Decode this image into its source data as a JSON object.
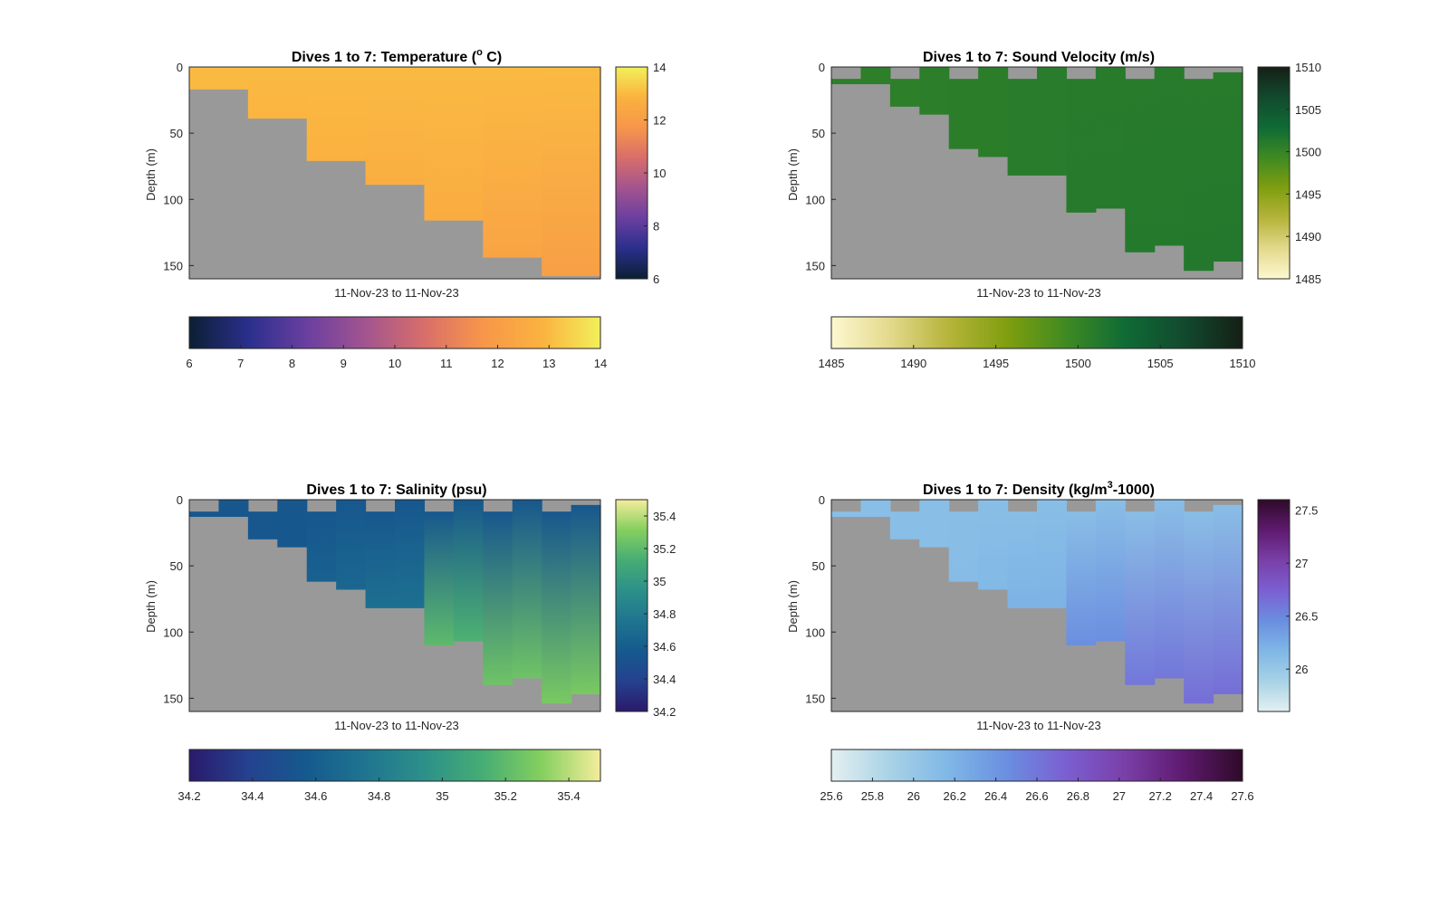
{
  "figure": {
    "background": "#ffffff",
    "land_color": "#999999"
  },
  "chart_data": [
    {
      "type": "heatmap",
      "variable": "temperature",
      "title": "Dives 1 to 7: Temperature (",
      "title_sup": "o",
      "title_end": " C)",
      "xlabel": "11-Nov-23 to 11-Nov-23",
      "ylabel": "Depth (m)",
      "ylim": [
        0,
        160
      ],
      "y_reversed": true,
      "yticks": [
        "0",
        "50",
        "100",
        "150"
      ],
      "yticks_values": [
        0,
        50,
        100,
        150
      ],
      "clim": [
        6,
        14
      ],
      "colormap": [
        "#0b1f33",
        "#2a2f8c",
        "#6a3fa0",
        "#a3548f",
        "#d86e6a",
        "#f7964a",
        "#fbb23f",
        "#f2f05a"
      ],
      "cb_right_ticks": [
        "6",
        "8",
        "10",
        "12",
        "14"
      ],
      "cb_right_values": [
        6,
        8,
        10,
        12,
        14
      ],
      "cb_bottom_ticks": [
        "6",
        "7",
        "8",
        "9",
        "10",
        "11",
        "12",
        "13",
        "14"
      ],
      "cb_bottom_values": [
        6,
        7,
        8,
        9,
        10,
        11,
        12,
        13,
        14
      ],
      "columns": [
        {
          "top": 0,
          "bottom": 17,
          "surface": 13.0,
          "bottom_value": 13.0
        },
        {
          "top": 0,
          "bottom": 39,
          "surface": 13.0,
          "bottom_value": 12.9
        },
        {
          "top": 0,
          "bottom": 71,
          "surface": 13.0,
          "bottom_value": 12.8
        },
        {
          "top": 0,
          "bottom": 89,
          "surface": 13.0,
          "bottom_value": 12.7
        },
        {
          "top": 0,
          "bottom": 116,
          "surface": 13.0,
          "bottom_value": 12.6
        },
        {
          "top": 0,
          "bottom": 144,
          "surface": 13.0,
          "bottom_value": 12.3
        },
        {
          "top": 0,
          "bottom": 158,
          "surface": 13.0,
          "bottom_value": 12.1
        }
      ]
    },
    {
      "type": "heatmap",
      "variable": "sound_velocity",
      "title": "Dives 1 to 7: Sound Velocity (m/s)",
      "xlabel": "11-Nov-23 to 11-Nov-23",
      "ylabel": "Depth (m)",
      "ylim": [
        0,
        160
      ],
      "y_reversed": true,
      "yticks": [
        "0",
        "50",
        "100",
        "150"
      ],
      "yticks_values": [
        0,
        50,
        100,
        150
      ],
      "clim": [
        1485,
        1510
      ],
      "colormap": [
        "#fdf8d0",
        "#e3d98c",
        "#b5b43a",
        "#7f9e0f",
        "#3f8a22",
        "#0f6b35",
        "#124a2e",
        "#151f15"
      ],
      "cb_right_ticks": [
        "1485",
        "1490",
        "1495",
        "1500",
        "1505",
        "1510"
      ],
      "cb_right_values": [
        1485,
        1490,
        1495,
        1500,
        1505,
        1510
      ],
      "cb_bottom_ticks": [
        "1485",
        "1490",
        "1495",
        "1500",
        "1505",
        "1510"
      ],
      "cb_bottom_values": [
        1485,
        1490,
        1495,
        1500,
        1505,
        1510
      ],
      "columns": [
        {
          "top": 0,
          "bottom": 13,
          "surface": 1500.6,
          "bottom_value": 1500.6
        },
        {
          "top": 0,
          "bottom": 13,
          "surface": 1500.6,
          "bottom_value": 1500.6
        },
        {
          "top": 0,
          "bottom": 30,
          "surface": 1500.6,
          "bottom_value": 1500.6
        },
        {
          "top": 0,
          "bottom": 36,
          "surface": 1500.7,
          "bottom_value": 1500.7
        },
        {
          "top": 0,
          "bottom": 62,
          "surface": 1500.8,
          "bottom_value": 1500.8
        },
        {
          "top": 0,
          "bottom": 68,
          "surface": 1500.8,
          "bottom_value": 1500.8
        },
        {
          "top": 0,
          "bottom": 82,
          "surface": 1500.9,
          "bottom_value": 1500.9
        },
        {
          "top": 0,
          "bottom": 82,
          "surface": 1500.9,
          "bottom_value": 1500.9
        },
        {
          "top": 0,
          "bottom": 110,
          "surface": 1501.0,
          "bottom_value": 1501.1
        },
        {
          "top": 0,
          "bottom": 107,
          "surface": 1501.0,
          "bottom_value": 1501.1
        },
        {
          "top": 0,
          "bottom": 140,
          "surface": 1501.0,
          "bottom_value": 1501.3
        },
        {
          "top": 0,
          "bottom": 135,
          "surface": 1501.0,
          "bottom_value": 1501.3
        },
        {
          "top": 0,
          "bottom": 154,
          "surface": 1501.0,
          "bottom_value": 1501.4
        },
        {
          "top": 0,
          "bottom": 147,
          "surface": 1501.0,
          "bottom_value": 1501.4
        }
      ],
      "column_top_gaps": [
        9,
        0,
        9,
        0,
        9,
        0,
        9,
        0,
        9,
        0,
        9,
        0,
        9,
        4
      ]
    },
    {
      "type": "heatmap",
      "variable": "salinity",
      "title": "Dives 1 to 7: Salinity (psu)",
      "xlabel": "11-Nov-23 to 11-Nov-23",
      "ylabel": "Depth (m)",
      "ylim": [
        0,
        160
      ],
      "y_reversed": true,
      "yticks": [
        "0",
        "50",
        "100",
        "150"
      ],
      "yticks_values": [
        0,
        50,
        100,
        150
      ],
      "clim": [
        34.2,
        35.5
      ],
      "colormap": [
        "#2a1a6b",
        "#25418f",
        "#155a8e",
        "#1f7590",
        "#2c9089",
        "#46ad74",
        "#85cf5e",
        "#f5ed9c"
      ],
      "cb_right_ticks": [
        "34.2",
        "34.4",
        "34.6",
        "34.8",
        "35",
        "35.2",
        "35.4"
      ],
      "cb_right_values": [
        34.2,
        34.4,
        34.6,
        34.8,
        35.0,
        35.2,
        35.4
      ],
      "cb_bottom_ticks": [
        "34.2",
        "34.4",
        "34.6",
        "34.8",
        "35",
        "35.2",
        "35.4"
      ],
      "cb_bottom_values": [
        34.2,
        34.4,
        34.6,
        34.8,
        35.0,
        35.2,
        35.4
      ],
      "columns": [
        {
          "top": 0,
          "bottom": 13,
          "surface": 34.55,
          "bottom_value": 34.55
        },
        {
          "top": 0,
          "bottom": 13,
          "surface": 34.55,
          "bottom_value": 34.55
        },
        {
          "top": 0,
          "bottom": 30,
          "surface": 34.55,
          "bottom_value": 34.55
        },
        {
          "top": 0,
          "bottom": 36,
          "surface": 34.55,
          "bottom_value": 34.56
        },
        {
          "top": 0,
          "bottom": 62,
          "surface": 34.55,
          "bottom_value": 34.62
        },
        {
          "top": 0,
          "bottom": 68,
          "surface": 34.55,
          "bottom_value": 34.66
        },
        {
          "top": 0,
          "bottom": 82,
          "surface": 34.55,
          "bottom_value": 34.72
        },
        {
          "top": 0,
          "bottom": 82,
          "surface": 34.55,
          "bottom_value": 34.72
        },
        {
          "top": 0,
          "bottom": 110,
          "surface": 34.55,
          "bottom_value": 35.2
        },
        {
          "top": 0,
          "bottom": 107,
          "surface": 34.55,
          "bottom_value": 35.15
        },
        {
          "top": 0,
          "bottom": 140,
          "surface": 34.55,
          "bottom_value": 35.25
        },
        {
          "top": 0,
          "bottom": 135,
          "surface": 34.55,
          "bottom_value": 35.25
        },
        {
          "top": 0,
          "bottom": 154,
          "surface": 34.55,
          "bottom_value": 35.28
        },
        {
          "top": 0,
          "bottom": 147,
          "surface": 34.55,
          "bottom_value": 35.28
        }
      ],
      "column_top_gaps": [
        9,
        0,
        9,
        0,
        9,
        0,
        9,
        0,
        9,
        0,
        9,
        0,
        9,
        4
      ]
    },
    {
      "type": "heatmap",
      "variable": "density",
      "title": "Dives 1 to 7: Density (kg/m",
      "title_sup": "3",
      "title_end": "-1000)",
      "xlabel": "11-Nov-23 to 11-Nov-23",
      "ylabel": "Depth (m)",
      "ylim": [
        0,
        160
      ],
      "y_reversed": true,
      "yticks": [
        "0",
        "50",
        "100",
        "150"
      ],
      "yticks_values": [
        0,
        50,
        100,
        150
      ],
      "clim": [
        25.6,
        27.6
      ],
      "colormap": [
        "#e3f0f1",
        "#a8d2e6",
        "#7fb7e6",
        "#6a8ee0",
        "#7b5fd1",
        "#7a3fa8",
        "#5e1a6f",
        "#2e0a28"
      ],
      "cb_right_ticks": [
        "26",
        "26.5",
        "27",
        "27.5"
      ],
      "cb_right_values": [
        26.0,
        26.5,
        27.0,
        27.5
      ],
      "cb_bottom_ticks": [
        "25.6",
        "25.8",
        "26",
        "26.2",
        "26.4",
        "26.6",
        "26.8",
        "27",
        "27.2",
        "27.4",
        "27.6"
      ],
      "cb_bottom_values": [
        25.6,
        25.8,
        26.0,
        26.2,
        26.4,
        26.6,
        26.8,
        27.0,
        27.2,
        27.4,
        27.6
      ],
      "columns": [
        {
          "top": 0,
          "bottom": 13,
          "surface": 26.1,
          "bottom_value": 26.1
        },
        {
          "top": 0,
          "bottom": 13,
          "surface": 26.1,
          "bottom_value": 26.1
        },
        {
          "top": 0,
          "bottom": 30,
          "surface": 26.1,
          "bottom_value": 26.1
        },
        {
          "top": 0,
          "bottom": 36,
          "surface": 26.1,
          "bottom_value": 26.1
        },
        {
          "top": 0,
          "bottom": 62,
          "surface": 26.1,
          "bottom_value": 26.12
        },
        {
          "top": 0,
          "bottom": 68,
          "surface": 26.1,
          "bottom_value": 26.15
        },
        {
          "top": 0,
          "bottom": 82,
          "surface": 26.1,
          "bottom_value": 26.2
        },
        {
          "top": 0,
          "bottom": 82,
          "surface": 26.1,
          "bottom_value": 26.2
        },
        {
          "top": 0,
          "bottom": 110,
          "surface": 26.1,
          "bottom_value": 26.45
        },
        {
          "top": 0,
          "bottom": 107,
          "surface": 26.1,
          "bottom_value": 26.45
        },
        {
          "top": 0,
          "bottom": 140,
          "surface": 26.1,
          "bottom_value": 26.6
        },
        {
          "top": 0,
          "bottom": 135,
          "surface": 26.1,
          "bottom_value": 26.6
        },
        {
          "top": 0,
          "bottom": 154,
          "surface": 26.1,
          "bottom_value": 26.65
        },
        {
          "top": 0,
          "bottom": 147,
          "surface": 26.1,
          "bottom_value": 26.65
        }
      ],
      "column_top_gaps": [
        9,
        0,
        9,
        0,
        9,
        0,
        9,
        0,
        9,
        0,
        9,
        0,
        9,
        4
      ]
    }
  ]
}
